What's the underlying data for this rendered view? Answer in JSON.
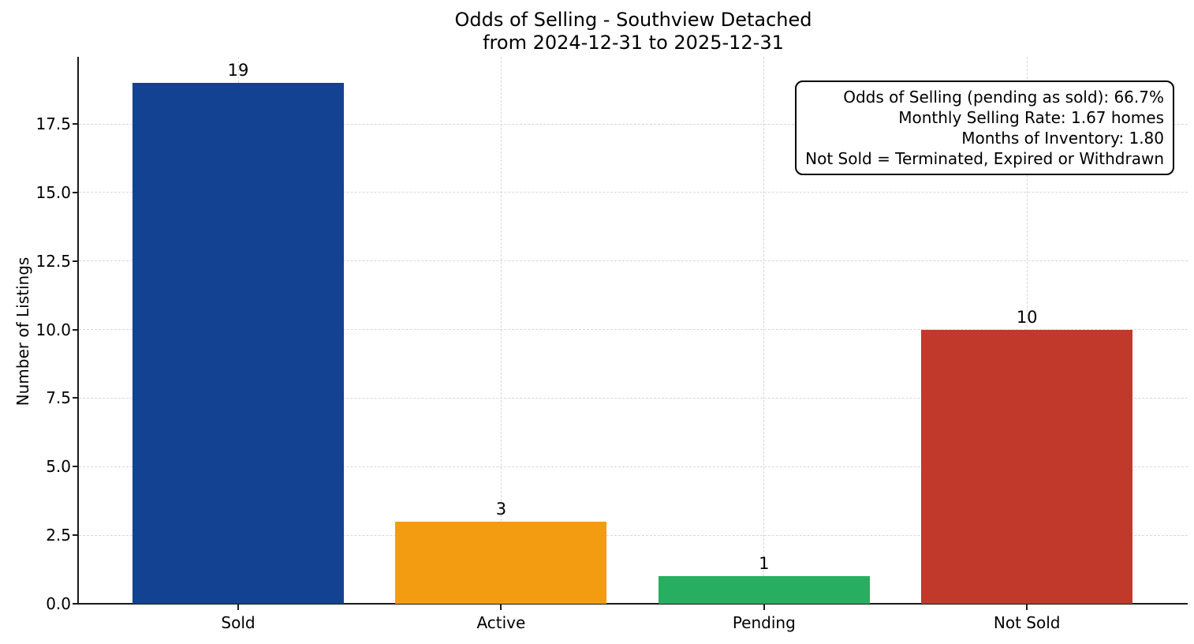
{
  "chart_data": {
    "type": "bar",
    "title": "Odds of Selling - Southview Detached",
    "subtitle": "from 2024-12-31 to 2025-12-31",
    "categories": [
      "Sold",
      "Active",
      "Pending",
      "Not Sold"
    ],
    "values": [
      19,
      3,
      1,
      10
    ],
    "value_labels": [
      "19",
      "3",
      "1",
      "10"
    ],
    "bar_colors": [
      "#134293",
      "#F39C12",
      "#27AE60",
      "#C0392B"
    ],
    "xlabel": "",
    "ylabel": "Number of Listings",
    "ylim": [
      0,
      19.95
    ],
    "yticks": [
      0.0,
      2.5,
      5.0,
      7.5,
      10.0,
      12.5,
      15.0,
      17.5
    ],
    "ytick_labels": [
      "0.0",
      "2.5",
      "5.0",
      "7.5",
      "10.0",
      "12.5",
      "15.0",
      "17.5"
    ],
    "grid": true,
    "grid_style": "dashed",
    "legend_position": "none",
    "axis_color": "#1a1a1a",
    "grid_color": "#d8d8d8"
  },
  "annotation_box": {
    "lines": [
      "Odds of Selling (pending as sold): 66.7%",
      "Monthly Selling Rate: 1.67 homes",
      "Months of Inventory: 1.80",
      "Not Sold = Terminated, Expired or Withdrawn"
    ]
  }
}
